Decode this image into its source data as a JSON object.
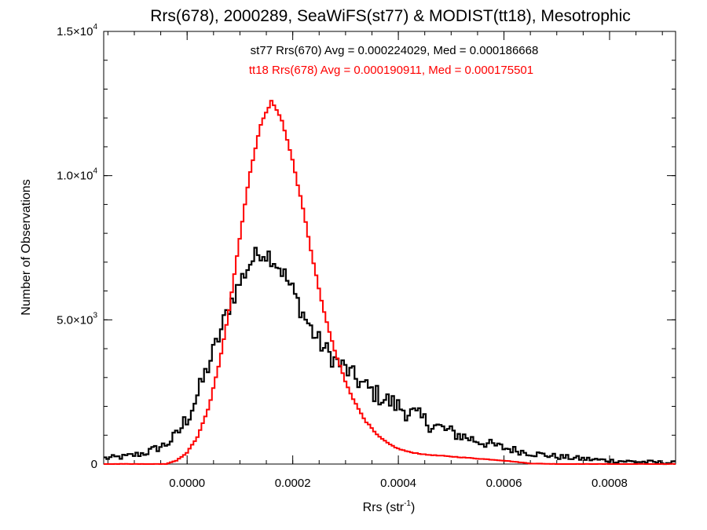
{
  "chart_data": {
    "type": "histogram",
    "title": "Rrs(678), 2000289, SeaWiFS(st77) & MODIST(tt18), Mesotrophic",
    "xlabel": {
      "base": "Rrs (str",
      "sup": "-1",
      "close": ")"
    },
    "ylabel": "Number of Observations",
    "xlim": [
      -0.000158,
      0.000925
    ],
    "ylim": [
      0,
      15000
    ],
    "x_ticks": [
      {
        "value": 0.0,
        "label": "0.0000"
      },
      {
        "value": 0.0002,
        "label": "0.0002"
      },
      {
        "value": 0.0004,
        "label": "0.0004"
      },
      {
        "value": 0.0006,
        "label": "0.0006"
      },
      {
        "value": 0.0008,
        "label": "0.0008"
      }
    ],
    "y_ticks": [
      {
        "value": 0,
        "mantissa": "0",
        "exp": ""
      },
      {
        "value": 5000,
        "mantissa": "5.0×10",
        "exp": "3"
      },
      {
        "value": 10000,
        "mantissa": "1.0×10",
        "exp": "4"
      },
      {
        "value": 15000,
        "mantissa": "1.5×10",
        "exp": "4"
      }
    ],
    "x_minor_step": 5e-05,
    "y_minor_step": 1000,
    "series": [
      {
        "name": "st77",
        "color": "#000000",
        "annotation": "st77 Rrs(670) Avg = 0.000224029, Med = 0.000186668",
        "profile": [
          [
            -0.000158,
            200
          ],
          [
            -0.00012,
            250
          ],
          [
            -8e-05,
            380
          ],
          [
            -4e-05,
            680
          ],
          [
            -2e-05,
            1000
          ],
          [
            0.0,
            1600
          ],
          [
            2e-05,
            2400
          ],
          [
            4e-05,
            3400
          ],
          [
            6e-05,
            4400
          ],
          [
            8e-05,
            5500
          ],
          [
            0.0001,
            6300
          ],
          [
            0.00012,
            7000
          ],
          [
            0.00014,
            7400
          ],
          [
            0.00016,
            7200
          ],
          [
            0.00018,
            6700
          ],
          [
            0.0002,
            6000
          ],
          [
            0.00022,
            5200
          ],
          [
            0.00024,
            4500
          ],
          [
            0.00026,
            4000
          ],
          [
            0.00028,
            3600
          ],
          [
            0.0003,
            3300
          ],
          [
            0.00032,
            2950
          ],
          [
            0.00034,
            2650
          ],
          [
            0.00036,
            2400
          ],
          [
            0.00038,
            2200
          ],
          [
            0.0004,
            2000
          ],
          [
            0.00042,
            1800
          ],
          [
            0.00044,
            1600
          ],
          [
            0.00046,
            1400
          ],
          [
            0.0005,
            1100
          ],
          [
            0.00055,
            800
          ],
          [
            0.0006,
            560
          ],
          [
            0.00065,
            380
          ],
          [
            0.0007,
            260
          ],
          [
            0.00075,
            180
          ],
          [
            0.0008,
            120
          ],
          [
            0.00085,
            80
          ],
          [
            0.000925,
            40
          ]
        ],
        "jitter": 350
      },
      {
        "name": "tt18",
        "color": "#ff0000",
        "annotation": "tt18 Rrs(678) Avg = 0.000190911, Med = 0.000175501",
        "profile": [
          [
            -0.000158,
            0
          ],
          [
            -4e-05,
            0
          ],
          [
            -2e-05,
            120
          ],
          [
            0.0,
            400
          ],
          [
            2e-05,
            950
          ],
          [
            4e-05,
            1900
          ],
          [
            6e-05,
            3400
          ],
          [
            8e-05,
            5400
          ],
          [
            0.0001,
            7900
          ],
          [
            0.00012,
            10200
          ],
          [
            0.00014,
            11800
          ],
          [
            0.00016,
            12600
          ],
          [
            0.00018,
            11900
          ],
          [
            0.0002,
            10500
          ],
          [
            0.00022,
            8800
          ],
          [
            0.00024,
            6900
          ],
          [
            0.00026,
            5200
          ],
          [
            0.00028,
            3900
          ],
          [
            0.0003,
            2850
          ],
          [
            0.00032,
            2050
          ],
          [
            0.00034,
            1450
          ],
          [
            0.00036,
            1000
          ],
          [
            0.00038,
            720
          ],
          [
            0.0004,
            530
          ],
          [
            0.00042,
            420
          ],
          [
            0.00045,
            330
          ],
          [
            0.0005,
            260
          ],
          [
            0.00055,
            190
          ],
          [
            0.0006,
            120
          ],
          [
            0.00065,
            20
          ],
          [
            0.0007,
            0
          ],
          [
            0.000925,
            0
          ]
        ],
        "jitter": 60
      }
    ]
  }
}
